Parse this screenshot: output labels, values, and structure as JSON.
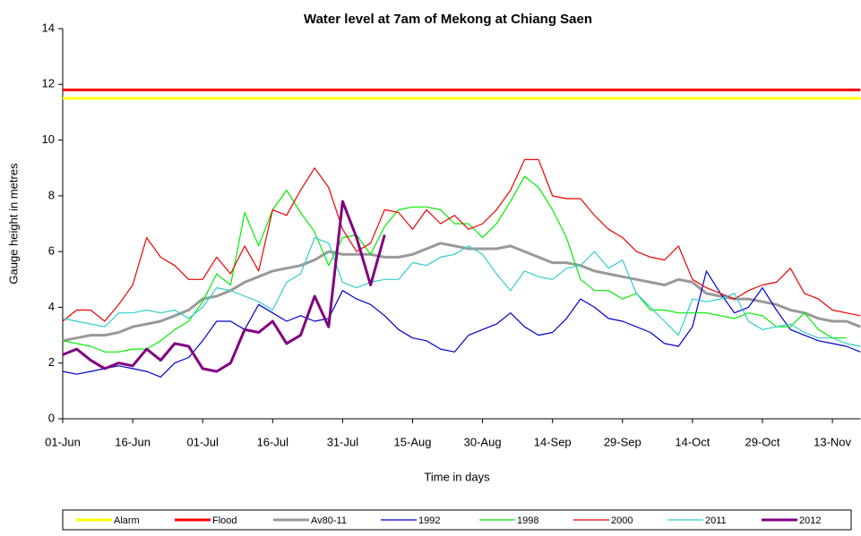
{
  "chart_data": {
    "type": "line",
    "title": "Water level at 7am of Mekong at Chiang Saen",
    "x_label": "Time in days",
    "y_label": "Gauge height in metres",
    "categories": [
      "01-Jun",
      null,
      null,
      null,
      null,
      "16-Jun",
      null,
      null,
      null,
      null,
      "01-Jul",
      null,
      null,
      null,
      null,
      "16-Jul",
      null,
      null,
      null,
      null,
      "31-Jul",
      null,
      null,
      null,
      null,
      "15-Aug",
      null,
      null,
      null,
      null,
      "30-Aug",
      null,
      null,
      null,
      null,
      "14-Sep",
      null,
      null,
      null,
      null,
      "29-Sep",
      null,
      null,
      null,
      null,
      "14-Oct",
      null,
      null,
      null,
      null,
      "29-Oct",
      null,
      null,
      null,
      null,
      "13-Nov",
      null,
      null
    ],
    "ylim": [
      0,
      14
    ],
    "yticks": [
      0,
      2,
      4,
      6,
      8,
      10,
      12,
      14
    ],
    "series": [
      {
        "name": "Alarm",
        "color": "#ffff00",
        "line_width": 3,
        "values": [
          11.5,
          11.5,
          11.5,
          11.5,
          11.5,
          11.5,
          11.5,
          11.5,
          11.5,
          11.5,
          11.5,
          11.5,
          11.5,
          11.5,
          11.5,
          11.5,
          11.5,
          11.5,
          11.5,
          11.5,
          11.5,
          11.5,
          11.5,
          11.5,
          11.5,
          11.5,
          11.5,
          11.5,
          11.5,
          11.5,
          11.5,
          11.5,
          11.5,
          11.5,
          11.5,
          11.5,
          11.5,
          11.5,
          11.5,
          11.5,
          11.5,
          11.5,
          11.5,
          11.5,
          11.5,
          11.5,
          11.5,
          11.5,
          11.5,
          11.5,
          11.5,
          11.5,
          11.5,
          11.5,
          11.5,
          11.5,
          11.5,
          11.5
        ]
      },
      {
        "name": "Flood",
        "color": "#ff0000",
        "line_width": 3,
        "values": [
          11.8,
          11.8,
          11.8,
          11.8,
          11.8,
          11.8,
          11.8,
          11.8,
          11.8,
          11.8,
          11.8,
          11.8,
          11.8,
          11.8,
          11.8,
          11.8,
          11.8,
          11.8,
          11.8,
          11.8,
          11.8,
          11.8,
          11.8,
          11.8,
          11.8,
          11.8,
          11.8,
          11.8,
          11.8,
          11.8,
          11.8,
          11.8,
          11.8,
          11.8,
          11.8,
          11.8,
          11.8,
          11.8,
          11.8,
          11.8,
          11.8,
          11.8,
          11.8,
          11.8,
          11.8,
          11.8,
          11.8,
          11.8,
          11.8,
          11.8,
          11.8,
          11.8,
          11.8,
          11.8,
          11.8,
          11.8,
          11.8,
          11.8
        ]
      },
      {
        "name": "Av80-11",
        "color": "#999999",
        "line_width": 3,
        "values": [
          2.8,
          2.9,
          3.0,
          3.0,
          3.1,
          3.3,
          3.4,
          3.5,
          3.7,
          3.9,
          4.3,
          4.4,
          4.6,
          4.9,
          5.1,
          5.3,
          5.4,
          5.5,
          5.7,
          6.0,
          5.9,
          5.9,
          5.9,
          5.8,
          5.8,
          5.9,
          6.1,
          6.3,
          6.2,
          6.1,
          6.1,
          6.1,
          6.2,
          6.0,
          5.8,
          5.6,
          5.6,
          5.5,
          5.3,
          5.2,
          5.1,
          5.0,
          4.9,
          4.8,
          5.0,
          4.9,
          4.5,
          4.4,
          4.3,
          4.3,
          4.2,
          4.1,
          3.9,
          3.8,
          3.6,
          3.5,
          3.5,
          3.3
        ]
      },
      {
        "name": "1992",
        "color": "#0000cc",
        "line_width": 1.2,
        "values": [
          1.7,
          1.6,
          1.7,
          1.8,
          1.9,
          1.8,
          1.7,
          1.5,
          2.0,
          2.2,
          2.8,
          3.5,
          3.5,
          3.2,
          4.1,
          3.8,
          3.5,
          3.7,
          3.5,
          3.6,
          4.6,
          4.3,
          4.1,
          3.7,
          3.2,
          2.9,
          2.8,
          2.5,
          2.4,
          3.0,
          3.2,
          3.4,
          3.8,
          3.3,
          3.0,
          3.1,
          3.6,
          4.3,
          4.0,
          3.6,
          3.5,
          3.3,
          3.1,
          2.7,
          2.6,
          3.3,
          5.3,
          4.5,
          3.8,
          4.0,
          4.7,
          3.9,
          3.2,
          3.0,
          2.8,
          2.7,
          2.6,
          2.4
        ]
      },
      {
        "name": "1998",
        "color": "#00ee00",
        "line_width": 1.2,
        "values": [
          2.8,
          2.7,
          2.6,
          2.4,
          2.4,
          2.5,
          2.5,
          2.8,
          3.2,
          3.5,
          4.2,
          5.2,
          4.8,
          7.4,
          6.2,
          7.5,
          8.2,
          7.4,
          6.7,
          5.5,
          6.5,
          6.6,
          5.9,
          6.9,
          7.5,
          7.6,
          7.6,
          7.5,
          7.0,
          7.0,
          6.5,
          7.0,
          7.8,
          8.7,
          8.3,
          7.5,
          6.5,
          5.0,
          4.6,
          4.6,
          4.3,
          4.5,
          3.9,
          3.9,
          3.8,
          3.8,
          3.8,
          3.7,
          3.6,
          3.8,
          3.7,
          3.3,
          3.3,
          3.8,
          3.2,
          2.9,
          2.9,
          null
        ]
      },
      {
        "name": "2000",
        "color": "#ee0000",
        "line_width": 1.2,
        "values": [
          3.5,
          3.9,
          3.9,
          3.5,
          4.1,
          4.8,
          6.5,
          5.8,
          5.5,
          5.0,
          5.0,
          5.8,
          5.2,
          6.2,
          5.3,
          7.5,
          7.3,
          8.2,
          9.0,
          8.3,
          6.8,
          6.0,
          6.3,
          7.5,
          7.4,
          6.8,
          7.5,
          7.0,
          7.3,
          6.8,
          7.0,
          7.5,
          8.2,
          9.3,
          9.3,
          8.0,
          7.9,
          7.9,
          7.3,
          6.8,
          6.5,
          6.0,
          5.8,
          5.7,
          6.2,
          5.0,
          4.7,
          4.5,
          4.3,
          4.6,
          4.8,
          4.9,
          5.4,
          4.5,
          4.3,
          3.9,
          3.8,
          3.7
        ]
      },
      {
        "name": "2011",
        "color": "#33cccc",
        "line_width": 1.2,
        "values": [
          3.6,
          3.5,
          3.4,
          3.3,
          3.8,
          3.8,
          3.9,
          3.8,
          3.9,
          3.6,
          4.0,
          4.7,
          4.6,
          4.4,
          4.2,
          3.9,
          4.9,
          5.2,
          6.5,
          6.3,
          4.9,
          4.7,
          4.9,
          5.0,
          5.0,
          5.6,
          5.5,
          5.8,
          5.9,
          6.2,
          5.9,
          5.2,
          4.6,
          5.3,
          5.1,
          5.0,
          5.4,
          5.5,
          6.0,
          5.4,
          5.7,
          4.5,
          4.0,
          3.5,
          3.0,
          4.3,
          4.2,
          4.3,
          4.5,
          3.5,
          3.2,
          3.3,
          3.4,
          3.1,
          2.9,
          2.9,
          2.7,
          2.6
        ]
      },
      {
        "name": "2012",
        "color": "#800080",
        "line_width": 3,
        "values": [
          2.3,
          2.5,
          2.1,
          1.8,
          2.0,
          1.9,
          2.5,
          2.1,
          2.7,
          2.6,
          1.8,
          1.7,
          2.0,
          3.2,
          3.1,
          3.5,
          2.7,
          3.0,
          4.4,
          3.3,
          7.8,
          6.5,
          4.8,
          6.6,
          null,
          null,
          null,
          null,
          null,
          null,
          null,
          null,
          null,
          null,
          null,
          null,
          null,
          null,
          null,
          null,
          null,
          null,
          null,
          null,
          null,
          null,
          null,
          null,
          null,
          null,
          null,
          null,
          null,
          null,
          null,
          null,
          null,
          null
        ]
      }
    ]
  }
}
